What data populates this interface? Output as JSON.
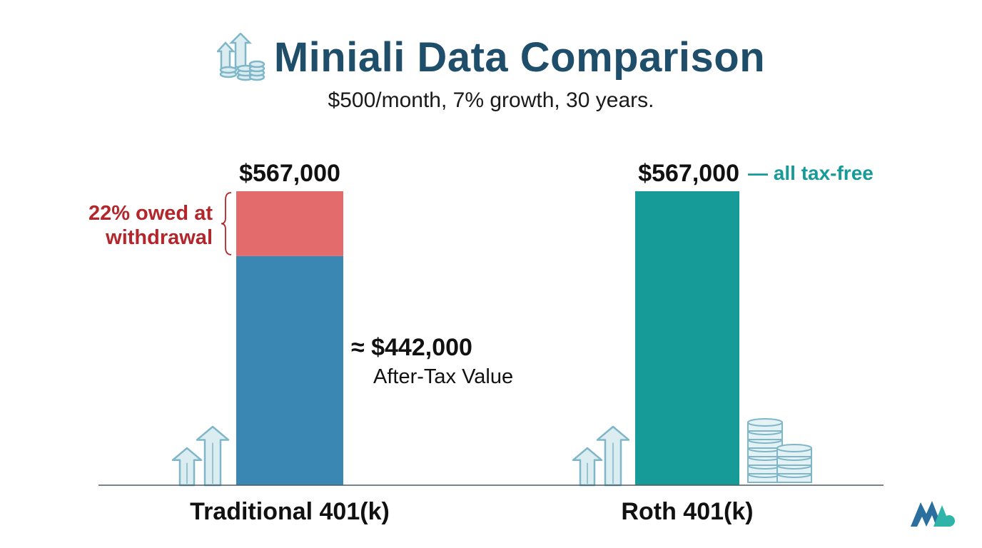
{
  "header": {
    "title": "Miniali Data Comparison",
    "subtitle": "$500/month, 7% growth, 30 years.",
    "icon": "coin-stack-growth-icon"
  },
  "colors": {
    "title": "#1f4e6b",
    "traditional_after_tax": "#3a87b3",
    "tax_owed": "#e36b6b",
    "roth": "#179b99",
    "tax_label": "#b3262b",
    "tax_free_label": "#179b99",
    "icon": "#7fb7c8"
  },
  "chart_data": {
    "type": "bar",
    "stacked": true,
    "categories": [
      "Traditional 401(k)",
      "Roth 401(k)"
    ],
    "total_labels": [
      "$567,000",
      "$567,000"
    ],
    "series": [
      {
        "values": [
          442000,
          567000
        ]
      },
      {
        "values": [
          125000,
          0
        ]
      }
    ],
    "annotations": {
      "tax_owed": "22% owed at withdrawal",
      "after_tax_value": "≈ $442,000",
      "after_tax_caption": "After-Tax Value",
      "tax_free": "— all tax-free"
    },
    "ylim": [
      0,
      567000
    ],
    "grid": false
  },
  "decorations": {
    "left_icon": "growth-arrows-icon",
    "right_icon": "growth-arrows-icon",
    "coins_icon": "coin-stacks-icon",
    "watermark": "brand-logo-icon"
  }
}
